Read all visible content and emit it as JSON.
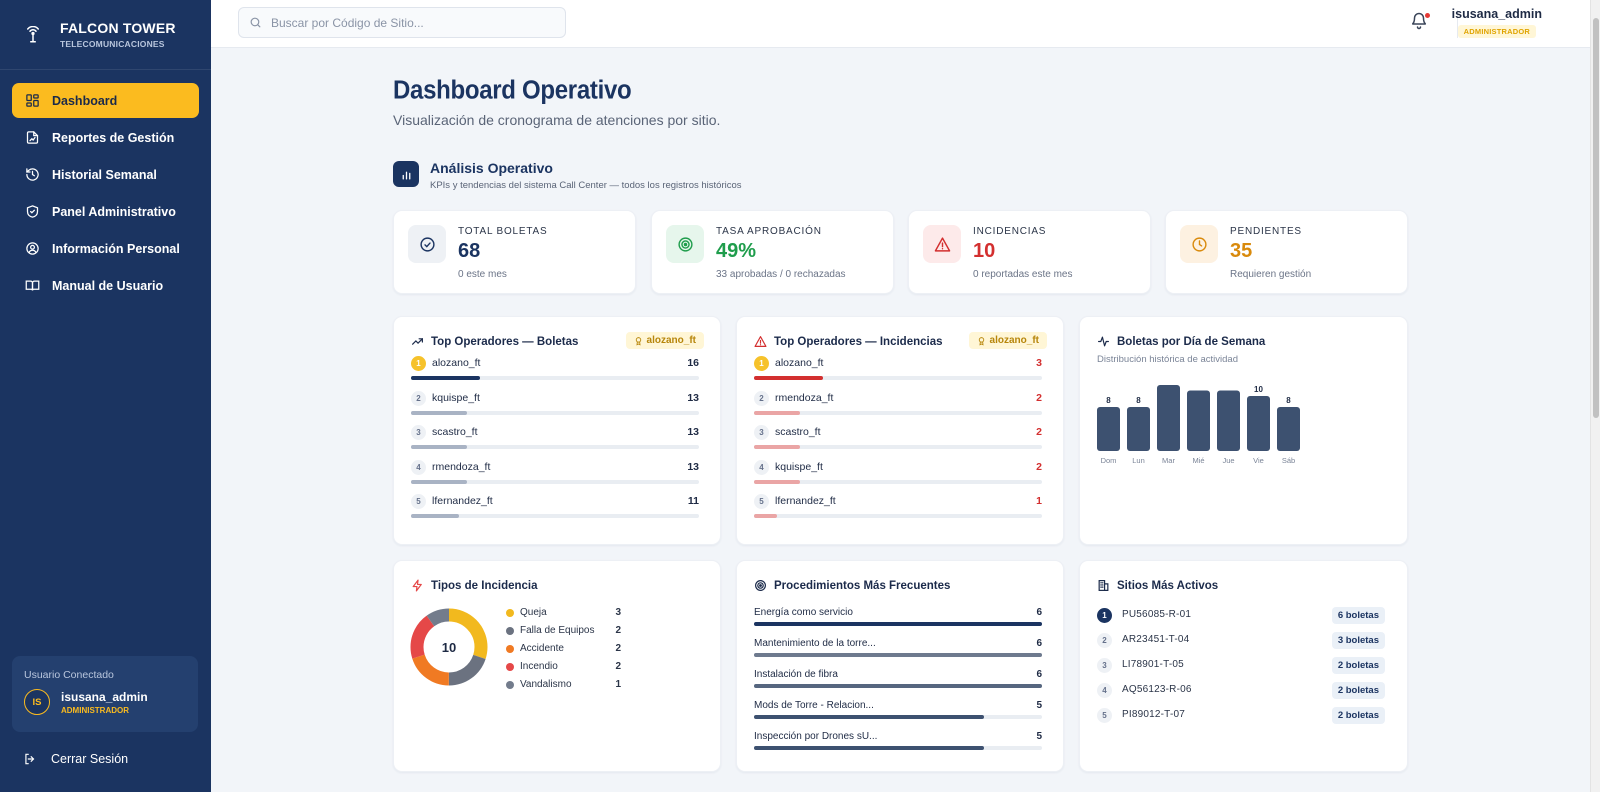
{
  "brand": {
    "title": "FALCON TOWER",
    "subtitle": "TELECOMUNICACIONES",
    "icon": "tower-icon"
  },
  "sidebar": {
    "items": [
      {
        "label": "Dashboard",
        "icon": "grid-icon",
        "active": true
      },
      {
        "label": "Reportes de Gestión",
        "icon": "report-icon"
      },
      {
        "label": "Historial Semanal",
        "icon": "history-icon"
      },
      {
        "label": "Panel Administrativo",
        "icon": "shield-icon"
      },
      {
        "label": "Información Personal",
        "icon": "user-circle-icon"
      },
      {
        "label": "Manual de Usuario",
        "icon": "book-icon"
      }
    ],
    "user_card": {
      "caption": "Usuario Conectado",
      "initials": "IS",
      "name": "isusana_admin",
      "role": "ADMINISTRADOR"
    },
    "logout_label": "Cerrar Sesión"
  },
  "topbar": {
    "search_placeholder": "Buscar por Código de Sitio...",
    "user_name": "isusana_admin",
    "user_role": "ADMINISTRADOR"
  },
  "page": {
    "title": "Dashboard Operativo",
    "subtitle": "Visualización de cronograma de atenciones por sitio."
  },
  "section": {
    "title": "Análisis Operativo",
    "subtitle": "KPIs y tendencias del sistema Call Center — todos los registros históricos"
  },
  "kpis": [
    {
      "label": "TOTAL BOLETAS",
      "value": "68",
      "note": "0 este mes",
      "color": "#1b3461",
      "bg": "#eef1f5",
      "icon": "check-circle-icon"
    },
    {
      "label": "TASA APROBACIÓN",
      "value": "49%",
      "note": "33 aprobadas / 0 rechazadas",
      "color": "#1f9d4c",
      "bg": "#e6f6ec",
      "icon": "target-icon"
    },
    {
      "label": "INCIDENCIAS",
      "value": "10",
      "note": "0 reportadas este mes",
      "color": "#d32f2f",
      "bg": "#fdeaea",
      "icon": "warning-icon"
    },
    {
      "label": "PENDIENTES",
      "value": "35",
      "note": "Requieren gestión",
      "color": "#d98a0c",
      "bg": "#fdf1e1",
      "icon": "clock-icon"
    }
  ],
  "top_boletas": {
    "title": "Top Operadores — Boletas",
    "badge": "alozano_ft",
    "max": 16,
    "color": "#1b3461",
    "rest_color": "#a9b3c4",
    "rows": [
      {
        "rank": "1",
        "name": "alozano_ft",
        "value": 16
      },
      {
        "rank": "2",
        "name": "kquispe_ft",
        "value": 13
      },
      {
        "rank": "3",
        "name": "scastro_ft",
        "value": 13
      },
      {
        "rank": "4",
        "name": "rmendoza_ft",
        "value": 13
      },
      {
        "rank": "5",
        "name": "lfernandez_ft",
        "value": 11
      }
    ]
  },
  "top_incidencias": {
    "title": "Top Operadores — Incidencias",
    "badge": "alozano_ft",
    "max": 3,
    "color": "#d32f2f",
    "rest_color": "#eaa5a5",
    "rows": [
      {
        "rank": "1",
        "name": "alozano_ft",
        "value": 3
      },
      {
        "rank": "2",
        "name": "rmendoza_ft",
        "value": 2
      },
      {
        "rank": "3",
        "name": "scastro_ft",
        "value": 2
      },
      {
        "rank": "4",
        "name": "kquispe_ft",
        "value": 2
      },
      {
        "rank": "5",
        "name": "lfernandez_ft",
        "value": 1
      }
    ]
  },
  "weekday": {
    "title": "Boletas por Día de Semana",
    "subtitle": "Distribución histórica de actividad"
  },
  "chart_data": [
    {
      "type": "bar",
      "categories": [
        "Dom",
        "Lun",
        "Mar",
        "Mié",
        "Jue",
        "Vie",
        "Sáb"
      ],
      "values": [
        8,
        8,
        12,
        11,
        11,
        10,
        8
      ],
      "data_labels": [
        "8",
        "8",
        "",
        "",
        "",
        "10",
        "8"
      ],
      "ylim": [
        0,
        12
      ],
      "color": "#3d5170"
    },
    {
      "type": "pie",
      "title": "Tipos de Incidencia",
      "total_label": "10",
      "categories": [
        "Queja",
        "Falla de Equipos",
        "Accidente",
        "Incendio",
        "Vandalismo"
      ],
      "values": [
        3,
        2,
        2,
        2,
        1
      ],
      "colors": [
        "#f2b91e",
        "#6b7280",
        "#f07a23",
        "#e54848",
        "#737c8c"
      ]
    }
  ],
  "procedimientos": {
    "title": "Procedimientos Más Frecuentes",
    "max": 6,
    "rows": [
      {
        "name": "Energía como servicio",
        "value": 6,
        "color": "#1b3461"
      },
      {
        "name": "Mantenimiento de la torre...",
        "value": 6,
        "color": "#6e7a8e"
      },
      {
        "name": "Instalación de fibra",
        "value": 6,
        "color": "#56667f"
      },
      {
        "name": "Mods de Torre - Relacion...",
        "value": 5,
        "color": "#3d5170"
      },
      {
        "name": "Inspección por Drones sU...",
        "value": 5,
        "color": "#3d5170"
      }
    ]
  },
  "sitios": {
    "title": "Sitios Más Activos",
    "rows": [
      {
        "rank": "1",
        "code": "PU56085-R-01",
        "badge": "6 boletas"
      },
      {
        "rank": "2",
        "code": "AR23451-T-04",
        "badge": "3 boletas"
      },
      {
        "rank": "3",
        "code": "LI78901-T-05",
        "badge": "2 boletas"
      },
      {
        "rank": "4",
        "code": "AQ56123-R-06",
        "badge": "2 boletas"
      },
      {
        "rank": "5",
        "code": "PI89012-T-07",
        "badge": "2 boletas"
      }
    ]
  }
}
